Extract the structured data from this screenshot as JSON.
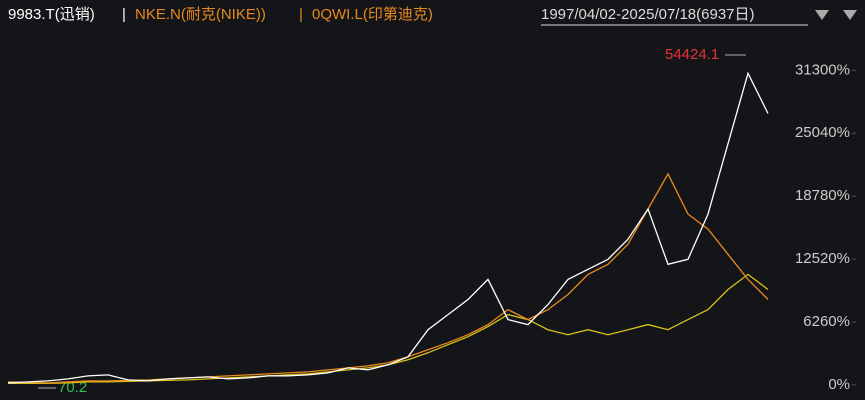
{
  "chart_data": {
    "type": "line",
    "series": [
      {
        "name": "9983.T(迅销)",
        "color": "#ffffff",
        "values": [
          200,
          300,
          400,
          600,
          900,
          1000,
          500,
          400,
          600,
          700,
          800,
          600,
          700,
          900,
          900,
          1000,
          1200,
          1700,
          1500,
          2000,
          2800,
          5500,
          7000,
          8500,
          10500,
          6500,
          6000,
          8000,
          10500,
          11500,
          12500,
          14500,
          17500,
          12000,
          12500,
          17000,
          24000,
          31000,
          27000
        ]
      },
      {
        "name": "NKE.N(耐克(NIKE))",
        "color": "#e8891c",
        "values": [
          300,
          250,
          200,
          300,
          400,
          400,
          450,
          500,
          600,
          700,
          800,
          900,
          1000,
          1100,
          1200,
          1300,
          1500,
          1700,
          1900,
          2200,
          2800,
          3500,
          4200,
          5000,
          6000,
          7500,
          6500,
          7500,
          9000,
          11000,
          12000,
          14000,
          17500,
          21000,
          17000,
          15500,
          13000,
          10500,
          8500
        ]
      },
      {
        "name": "0QWI.L(印第迪克)",
        "color": "#d9c21a",
        "values": [
          150,
          150,
          150,
          200,
          300,
          300,
          350,
          400,
          450,
          500,
          600,
          700,
          800,
          900,
          1000,
          1100,
          1300,
          1500,
          1700,
          2000,
          2500,
          3200,
          4000,
          4800,
          5800,
          7000,
          6500,
          5500,
          5000,
          5500,
          5000,
          5500,
          6000,
          5500,
          6500,
          7500,
          9500,
          11000,
          9500
        ]
      }
    ],
    "separator": "|",
    "date_range": "1997/04/02-2025/07/18(6937日)",
    "max_label": "54424.1",
    "min_label": "70.2",
    "ylim": [
      -1000,
      37300
    ],
    "yticks": [
      {
        "value": 0,
        "label": "0%"
      },
      {
        "value": 6260,
        "label": "6260%"
      },
      {
        "value": 12520,
        "label": "12520%"
      },
      {
        "value": 18780,
        "label": "18780%"
      },
      {
        "value": 25040,
        "label": "25040%"
      },
      {
        "value": 31300,
        "label": "31300%"
      }
    ],
    "grid": false
  }
}
